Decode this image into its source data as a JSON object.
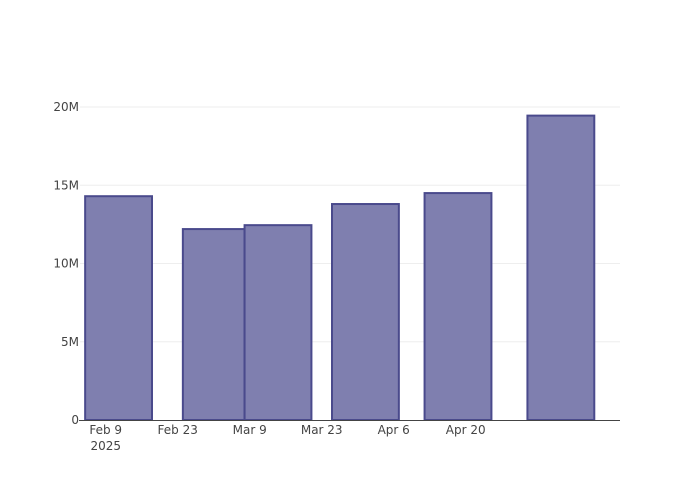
{
  "chart_data": {
    "type": "bar",
    "x_axis_type": "date",
    "categories": [
      "2025-02-09",
      "2025-02-23",
      "2025-03-09",
      "2025-03-23",
      "2025-04-06",
      "2025-04-20"
    ],
    "bars": [
      {
        "start": "2025-02-05",
        "end": "2025-02-18",
        "value": 14300000
      },
      {
        "start": "2025-02-24",
        "end": "2025-03-08",
        "value": 12200000
      },
      {
        "start": "2025-03-08",
        "end": "2025-03-21",
        "value": 12450000
      },
      {
        "start": "2025-03-25",
        "end": "2025-04-07",
        "value": 13800000
      },
      {
        "start": "2025-04-12",
        "end": "2025-04-25",
        "value": 14500000
      },
      {
        "start": "2025-05-02",
        "end": "2025-05-15",
        "value": 19450000
      }
    ],
    "series": [
      {
        "values": [
          14300000,
          12200000,
          12450000,
          13800000,
          14500000,
          19450000
        ]
      }
    ],
    "x_ticks": [
      {
        "date": "2025-02-09",
        "label": "Feb 9",
        "sublabel": "2025"
      },
      {
        "date": "2025-02-23",
        "label": "Feb 23"
      },
      {
        "date": "2025-03-09",
        "label": "Mar 9"
      },
      {
        "date": "2025-03-23",
        "label": "Mar 23"
      },
      {
        "date": "2025-04-06",
        "label": "Apr 6"
      },
      {
        "date": "2025-04-20",
        "label": "Apr 20"
      }
    ],
    "xlim": [
      "2025-02-04",
      "2025-05-20"
    ],
    "y_ticks": [
      {
        "value": 0,
        "label": "0"
      },
      {
        "value": 5000000,
        "label": "5M"
      },
      {
        "value": 10000000,
        "label": "10M"
      },
      {
        "value": 15000000,
        "label": "15M"
      },
      {
        "value": 20000000,
        "label": "20M"
      }
    ],
    "ylim": [
      0,
      20000000
    ],
    "title": "",
    "xlabel": "",
    "ylabel": "",
    "grid": true,
    "legend": false,
    "bar_fill": "#7f7faf",
    "bar_stroke": "#4a4a8c"
  }
}
